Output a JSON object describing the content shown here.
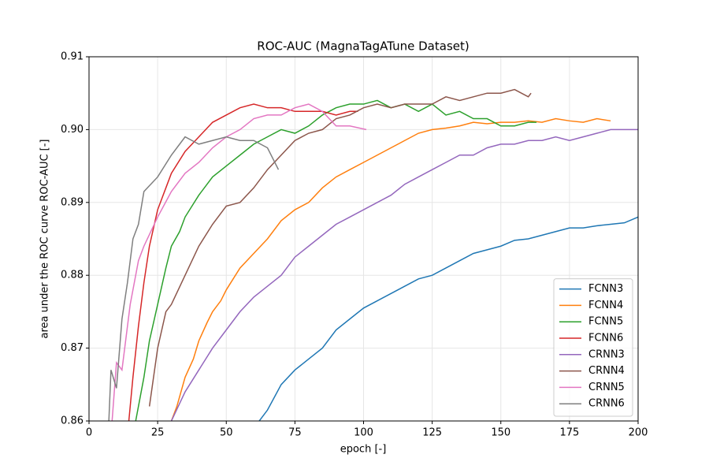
{
  "chart_data": {
    "type": "line",
    "title": "ROC-AUC (MagnaTagATune Dataset)",
    "xlabel": "epoch [-]",
    "ylabel": "area under the ROC curve ROC-AUC [-]",
    "xlim": [
      0,
      200
    ],
    "ylim": [
      0.86,
      0.91
    ],
    "xticks": [
      0,
      25,
      50,
      75,
      100,
      125,
      150,
      175,
      200
    ],
    "yticks": [
      0.86,
      0.87,
      0.88,
      0.89,
      {
        "value": 0.9,
        "label": "0.90"
      },
      0.91
    ],
    "grid": true,
    "legend": "lower right",
    "series": [
      {
        "name": "FCNN3",
        "color": "#1f77b4",
        "x": [
          60,
          65,
          70,
          75,
          80,
          85,
          90,
          95,
          100,
          105,
          110,
          115,
          120,
          125,
          130,
          135,
          140,
          145,
          150,
          155,
          160,
          165,
          170,
          175,
          180,
          185,
          190,
          195,
          200
        ],
        "values": [
          0.859,
          0.8615,
          0.865,
          0.867,
          0.8685,
          0.87,
          0.8725,
          0.874,
          0.8755,
          0.8765,
          0.8775,
          0.8785,
          0.8795,
          0.88,
          0.881,
          0.882,
          0.883,
          0.8835,
          0.884,
          0.8848,
          0.885,
          0.8855,
          0.886,
          0.8865,
          0.8865,
          0.8868,
          0.887,
          0.8872,
          0.888
        ]
      },
      {
        "name": "FCNN4",
        "color": "#ff7f0e",
        "x": [
          29,
          32,
          35,
          38,
          40,
          43,
          45,
          48,
          50,
          55,
          60,
          65,
          70,
          75,
          80,
          85,
          90,
          95,
          100,
          105,
          110,
          115,
          120,
          125,
          130,
          135,
          140,
          145,
          150,
          155,
          160,
          165,
          170,
          175,
          180,
          185,
          190
        ],
        "values": [
          0.859,
          0.862,
          0.866,
          0.8685,
          0.871,
          0.8735,
          0.875,
          0.8765,
          0.878,
          0.881,
          0.883,
          0.885,
          0.8875,
          0.889,
          0.89,
          0.892,
          0.8935,
          0.8945,
          0.8955,
          0.8965,
          0.8975,
          0.8985,
          0.8995,
          0.9,
          0.9002,
          0.9005,
          0.901,
          0.9008,
          0.901,
          0.901,
          0.9012,
          0.901,
          0.9015,
          0.9012,
          0.901,
          0.9015,
          0.9012
        ]
      },
      {
        "name": "FCNN5",
        "color": "#2ca02c",
        "x": [
          17,
          18,
          20,
          22,
          25,
          28,
          30,
          33,
          35,
          40,
          45,
          50,
          55,
          60,
          65,
          70,
          75,
          80,
          85,
          90,
          95,
          100,
          105,
          110,
          115,
          120,
          125,
          130,
          135,
          140,
          145,
          150,
          155,
          160,
          163
        ],
        "values": [
          0.86,
          0.862,
          0.866,
          0.871,
          0.876,
          0.881,
          0.884,
          0.886,
          0.888,
          0.891,
          0.8935,
          0.895,
          0.8965,
          0.898,
          0.899,
          0.9,
          0.8995,
          0.9005,
          0.902,
          0.903,
          0.9035,
          0.9035,
          0.904,
          0.903,
          0.9035,
          0.9025,
          0.9035,
          0.902,
          0.9025,
          0.9015,
          0.9015,
          0.9005,
          0.9005,
          0.901,
          0.901
        ]
      },
      {
        "name": "FCNN6",
        "color": "#d62728",
        "x": [
          14,
          16,
          18,
          20,
          22,
          25,
          28,
          30,
          35,
          40,
          45,
          50,
          55,
          60,
          65,
          70,
          75,
          80,
          85,
          90,
          95,
          98
        ],
        "values": [
          0.858,
          0.866,
          0.873,
          0.879,
          0.884,
          0.889,
          0.892,
          0.894,
          0.897,
          0.899,
          0.901,
          0.902,
          0.903,
          0.9035,
          0.903,
          0.903,
          0.9025,
          0.9025,
          0.9025,
          0.902,
          0.9025,
          0.9025
        ]
      },
      {
        "name": "CRNN3",
        "color": "#9467bd",
        "x": [
          27,
          30,
          35,
          40,
          45,
          50,
          55,
          60,
          65,
          70,
          75,
          80,
          85,
          90,
          95,
          100,
          105,
          110,
          115,
          120,
          125,
          130,
          135,
          140,
          145,
          150,
          155,
          160,
          165,
          170,
          175,
          180,
          185,
          190,
          195,
          200
        ],
        "values": [
          0.858,
          0.86,
          0.864,
          0.867,
          0.87,
          0.8725,
          0.875,
          0.877,
          0.8785,
          0.88,
          0.8825,
          0.884,
          0.8855,
          0.887,
          0.888,
          0.889,
          0.89,
          0.891,
          0.8925,
          0.8935,
          0.8945,
          0.8955,
          0.8965,
          0.8965,
          0.8975,
          0.898,
          0.898,
          0.8985,
          0.8985,
          0.899,
          0.8985,
          0.899,
          0.8995,
          0.9,
          0.9,
          0.9
        ]
      },
      {
        "name": "CRNN4",
        "color": "#8c564b",
        "x": [
          22,
          25,
          28,
          30,
          35,
          40,
          45,
          50,
          55,
          60,
          65,
          70,
          75,
          80,
          85,
          90,
          95,
          100,
          105,
          110,
          115,
          120,
          125,
          130,
          135,
          140,
          145,
          150,
          155,
          160,
          161
        ],
        "values": [
          0.862,
          0.87,
          0.875,
          0.876,
          0.88,
          0.884,
          0.887,
          0.8895,
          0.89,
          0.892,
          0.8945,
          0.8965,
          0.8985,
          0.8995,
          0.9,
          0.9015,
          0.902,
          0.903,
          0.9035,
          0.903,
          0.9035,
          0.9035,
          0.9035,
          0.9045,
          0.904,
          0.9045,
          0.905,
          0.905,
          0.9055,
          0.9045,
          0.905
        ]
      },
      {
        "name": "CRNN5",
        "color": "#e377c2",
        "x": [
          8,
          10,
          12,
          15,
          18,
          20,
          25,
          30,
          35,
          40,
          45,
          50,
          55,
          60,
          65,
          70,
          75,
          80,
          85,
          90,
          95,
          101
        ],
        "values": [
          0.858,
          0.868,
          0.867,
          0.876,
          0.882,
          0.884,
          0.888,
          0.8915,
          0.894,
          0.8955,
          0.8975,
          0.899,
          0.9,
          0.9015,
          0.902,
          0.902,
          0.903,
          0.9035,
          0.9025,
          0.9005,
          0.9005,
          0.9
        ]
      },
      {
        "name": "CRNN6",
        "color": "#7f7f7f",
        "x": [
          7,
          8,
          10,
          12,
          14,
          16,
          18,
          20,
          25,
          30,
          35,
          40,
          45,
          50,
          55,
          60,
          65,
          69
        ],
        "values": [
          0.858,
          0.867,
          0.8645,
          0.874,
          0.879,
          0.885,
          0.887,
          0.8915,
          0.8935,
          0.8965,
          0.899,
          0.898,
          0.8985,
          0.899,
          0.8985,
          0.8985,
          0.8975,
          0.8945
        ]
      }
    ]
  }
}
